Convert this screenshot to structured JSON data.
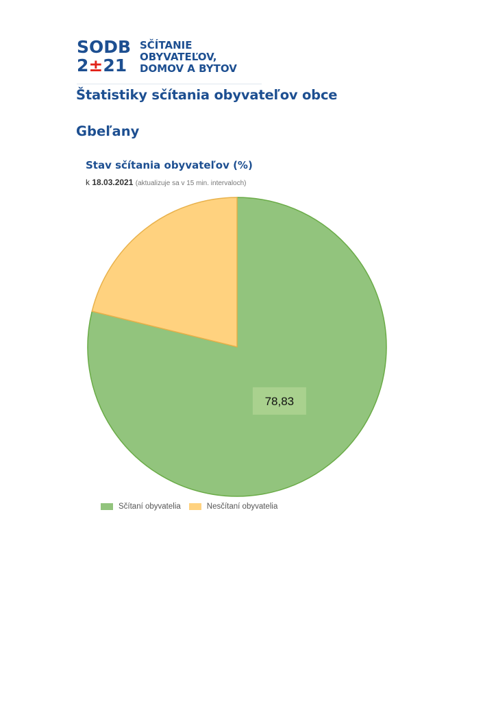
{
  "logo": {
    "mark_top": "SODB",
    "mark_bottom_left": "2",
    "mark_bottom_symbol": "±",
    "mark_bottom_right": "21",
    "text_lines": [
      "SČÍTANIE",
      "OBYVATEĽOV,",
      "DOMOV A BYTOV"
    ]
  },
  "page": {
    "title": "Štatistiky sčítania obyvateľov obce",
    "municipality": "Gbeľany"
  },
  "chart_data": {
    "type": "pie",
    "title": "Stav sčítania obyvateľov (%)",
    "subtitle_prefix": "k",
    "subtitle_date": "18.03.2021",
    "subtitle_note": "(aktualizuje sa v 15 min. intervaloch)",
    "legend_position": "bottom-left",
    "slices": [
      {
        "name": "Sčítaní obyvatelia",
        "value": 78.83,
        "label": "78,83",
        "color": "#92c47d",
        "stroke": "#6aab47"
      },
      {
        "name": "Nesčítaní obyvatelia",
        "value": 21.17,
        "label": "",
        "color": "#ffd27f",
        "stroke": "#e8b14b"
      }
    ]
  },
  "colors": {
    "brand_blue": "#1d4f91",
    "brand_red": "#e2231a"
  }
}
